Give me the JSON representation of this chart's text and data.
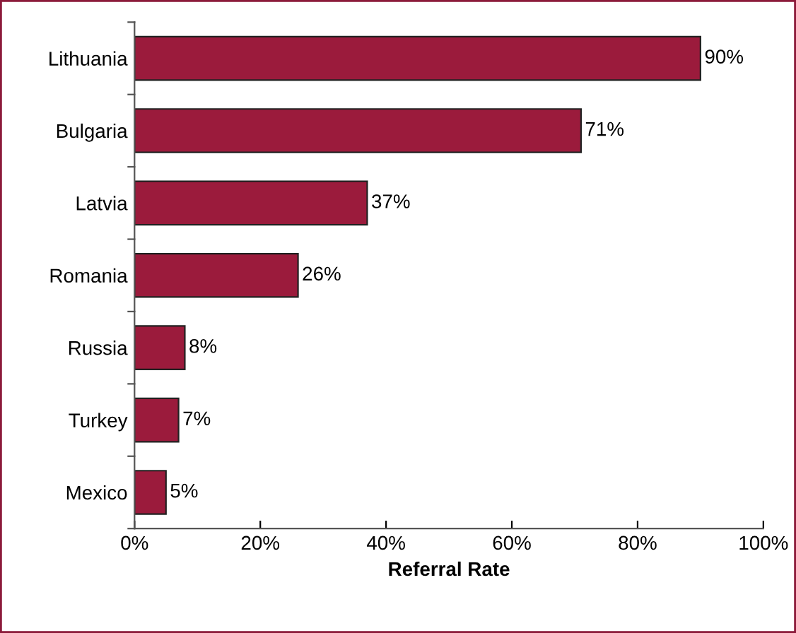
{
  "chart_data": {
    "type": "bar",
    "orientation": "horizontal",
    "xlabel": "Referral Rate",
    "categories": [
      "Lithuania",
      "Bulgaria",
      "Latvia",
      "Romania",
      "Russia",
      "Turkey",
      "Mexico"
    ],
    "values": [
      90,
      71,
      37,
      26,
      8,
      7,
      5
    ],
    "value_labels": [
      "90%",
      "71%",
      "37%",
      "26%",
      "8%",
      "7%",
      "5%"
    ],
    "color": "#9b1b3c",
    "xlim": [
      0,
      100
    ],
    "xticks": [
      {
        "value": 0,
        "label": "0%"
      },
      {
        "value": 20,
        "label": "20%"
      },
      {
        "value": 40,
        "label": "40%"
      },
      {
        "value": 60,
        "label": "60%"
      },
      {
        "value": 80,
        "label": "80%"
      },
      {
        "value": 100,
        "label": "100%"
      }
    ],
    "grid": false,
    "legend": false
  }
}
